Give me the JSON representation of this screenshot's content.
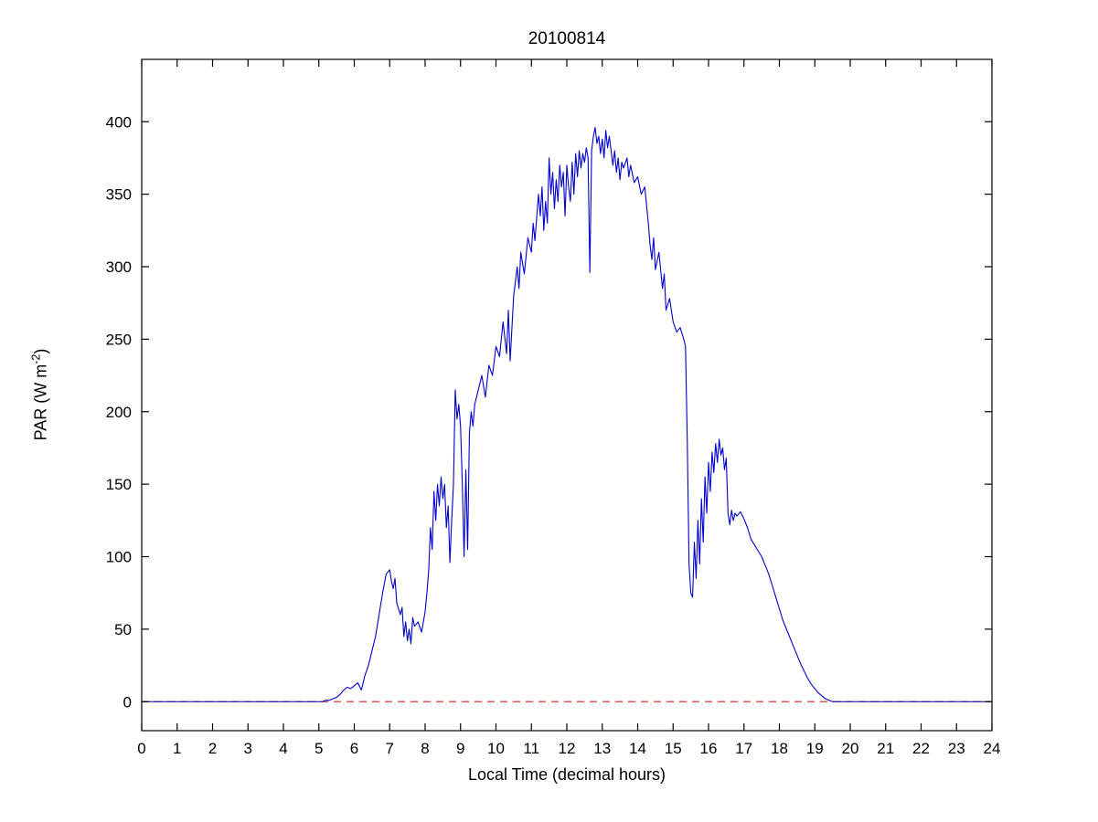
{
  "chart_data": {
    "type": "line",
    "title": "20100814",
    "xlabel": "Local Time (decimal hours)",
    "ylabel": "PAR (W m^-2)",
    "ylabel_parts": {
      "prefix": "PAR (W m",
      "sup": "-2",
      "suffix": ")"
    },
    "xlim": [
      0,
      24
    ],
    "ylim": [
      -20,
      443
    ],
    "xticks": [
      0,
      1,
      2,
      3,
      4,
      5,
      6,
      7,
      8,
      9,
      10,
      11,
      12,
      13,
      14,
      15,
      16,
      17,
      18,
      19,
      20,
      21,
      22,
      23,
      24
    ],
    "yticks": [
      0,
      50,
      100,
      150,
      200,
      250,
      300,
      350,
      400
    ],
    "grid": false,
    "legend": "none",
    "line_color": "#0000cc",
    "zero_line": {
      "y": 0,
      "color": "#dd3333",
      "style": "dashed"
    },
    "series": [
      {
        "name": "PAR",
        "x": [
          0,
          1,
          2,
          3,
          4,
          4.5,
          5,
          5.1,
          5.2,
          5.3,
          5.4,
          5.5,
          5.6,
          5.7,
          5.8,
          5.9,
          6.0,
          6.1,
          6.2,
          6.3,
          6.4,
          6.5,
          6.6,
          6.7,
          6.8,
          6.9,
          7.0,
          7.05,
          7.1,
          7.15,
          7.2,
          7.3,
          7.35,
          7.4,
          7.45,
          7.5,
          7.55,
          7.6,
          7.65,
          7.7,
          7.8,
          7.9,
          8.0,
          8.05,
          8.1,
          8.15,
          8.2,
          8.25,
          8.3,
          8.35,
          8.4,
          8.45,
          8.5,
          8.55,
          8.6,
          8.65,
          8.7,
          8.75,
          8.8,
          8.85,
          8.9,
          8.95,
          9.0,
          9.05,
          9.1,
          9.15,
          9.2,
          9.25,
          9.3,
          9.35,
          9.4,
          9.5,
          9.6,
          9.7,
          9.8,
          9.9,
          10.0,
          10.1,
          10.2,
          10.3,
          10.35,
          10.4,
          10.5,
          10.6,
          10.65,
          10.7,
          10.8,
          10.9,
          11.0,
          11.05,
          11.1,
          11.2,
          11.25,
          11.3,
          11.35,
          11.4,
          11.45,
          11.5,
          11.55,
          11.6,
          11.65,
          11.7,
          11.75,
          11.8,
          11.85,
          11.9,
          11.95,
          12.0,
          12.05,
          12.1,
          12.15,
          12.2,
          12.25,
          12.3,
          12.35,
          12.4,
          12.45,
          12.5,
          12.55,
          12.6,
          12.65,
          12.7,
          12.75,
          12.8,
          12.85,
          12.9,
          12.95,
          13.0,
          13.05,
          13.1,
          13.15,
          13.2,
          13.3,
          13.35,
          13.4,
          13.45,
          13.5,
          13.55,
          13.6,
          13.7,
          13.75,
          13.8,
          13.9,
          14.0,
          14.1,
          14.2,
          14.3,
          14.35,
          14.4,
          14.45,
          14.5,
          14.6,
          14.7,
          14.75,
          14.8,
          14.9,
          15.0,
          15.1,
          15.2,
          15.3,
          15.35,
          15.4,
          15.45,
          15.5,
          15.55,
          15.6,
          15.65,
          15.7,
          15.75,
          15.8,
          15.85,
          15.9,
          15.95,
          16.0,
          16.05,
          16.1,
          16.15,
          16.2,
          16.25,
          16.3,
          16.35,
          16.4,
          16.45,
          16.5,
          16.55,
          16.6,
          16.65,
          16.7,
          16.75,
          16.8,
          16.9,
          17.0,
          17.1,
          17.2,
          17.3,
          17.4,
          17.5,
          17.6,
          17.7,
          17.8,
          17.9,
          18.0,
          18.1,
          18.2,
          18.3,
          18.4,
          18.5,
          18.6,
          18.7,
          18.8,
          18.9,
          19.0,
          19.1,
          19.2,
          19.3,
          19.4,
          19.5,
          20,
          21,
          22,
          23,
          24
        ],
        "y": [
          0,
          0,
          0,
          0,
          0,
          0,
          0,
          0,
          1,
          1,
          2,
          3,
          5,
          8,
          10,
          9,
          11,
          13,
          8,
          18,
          25,
          35,
          45,
          60,
          75,
          88,
          91,
          83,
          78,
          85,
          68,
          60,
          65,
          45,
          55,
          42,
          50,
          40,
          58,
          52,
          55,
          48,
          62,
          75,
          90,
          120,
          105,
          145,
          125,
          150,
          135,
          155,
          140,
          150,
          120,
          135,
          96,
          125,
          150,
          215,
          195,
          205,
          190,
          150,
          100,
          160,
          105,
          185,
          200,
          190,
          205,
          215,
          225,
          210,
          232,
          225,
          245,
          238,
          262,
          240,
          270,
          235,
          280,
          300,
          285,
          310,
          295,
          320,
          310,
          330,
          318,
          350,
          335,
          355,
          325,
          345,
          330,
          375,
          350,
          365,
          340,
          360,
          345,
          370,
          355,
          365,
          335,
          370,
          355,
          345,
          372,
          350,
          378,
          362,
          380,
          368,
          378,
          372,
          382,
          375,
          296,
          380,
          390,
          396,
          385,
          390,
          378,
          388,
          375,
          394,
          382,
          390,
          370,
          380,
          365,
          375,
          360,
          372,
          368,
          375,
          362,
          370,
          358,
          362,
          350,
          355,
          330,
          315,
          305,
          320,
          298,
          310,
          285,
          295,
          270,
          278,
          262,
          255,
          258,
          250,
          245,
          180,
          95,
          75,
          72,
          110,
          85,
          125,
          95,
          140,
          110,
          155,
          130,
          165,
          145,
          172,
          158,
          178,
          165,
          181,
          170,
          175,
          160,
          168,
          130,
          122,
          132,
          125,
          130,
          128,
          131,
          126,
          120,
          112,
          108,
          104,
          100,
          94,
          88,
          80,
          72,
          64,
          56,
          50,
          44,
          38,
          32,
          26,
          21,
          16,
          12,
          9,
          6,
          4,
          2,
          1,
          0,
          0,
          0,
          0,
          0,
          0
        ]
      }
    ]
  }
}
